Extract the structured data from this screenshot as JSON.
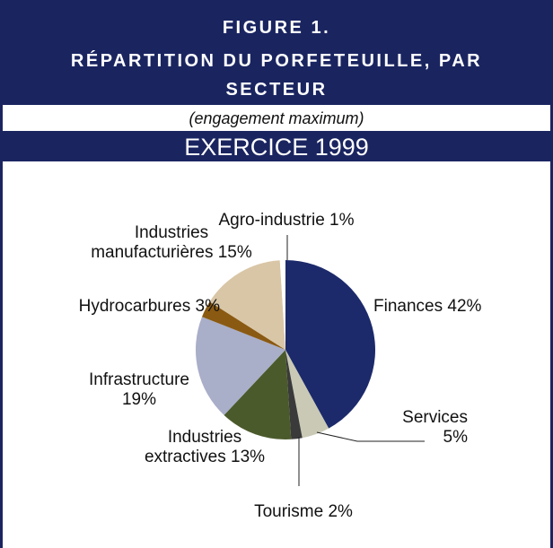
{
  "header": {
    "figure": "FIGURE 1.",
    "title": "RÉPARTITION DU PORFETEUILLE, PAR SECTEUR",
    "subtitle": "(engagement maximum)",
    "band": "EXERCICE 1999"
  },
  "chart_data": {
    "type": "pie",
    "categories": [
      "Finances",
      "Services",
      "Tourisme",
      "Industries extractives",
      "Infrastructure",
      "Hydrocarbures",
      "Industries manufacturières",
      "Agro-industrie"
    ],
    "values": [
      42,
      5,
      2,
      13,
      19,
      3,
      15,
      1
    ],
    "value_labels": [
      "42%",
      "5%",
      "2%",
      "13%",
      "19%",
      "3%",
      "15%",
      "1%"
    ],
    "colors": [
      "#1c2a6b",
      "#c9c9b5",
      "#3a3a3a",
      "#4b5a2b",
      "#a9aec9",
      "#8a5a12",
      "#d9c6a6",
      "#ffffff"
    ]
  }
}
